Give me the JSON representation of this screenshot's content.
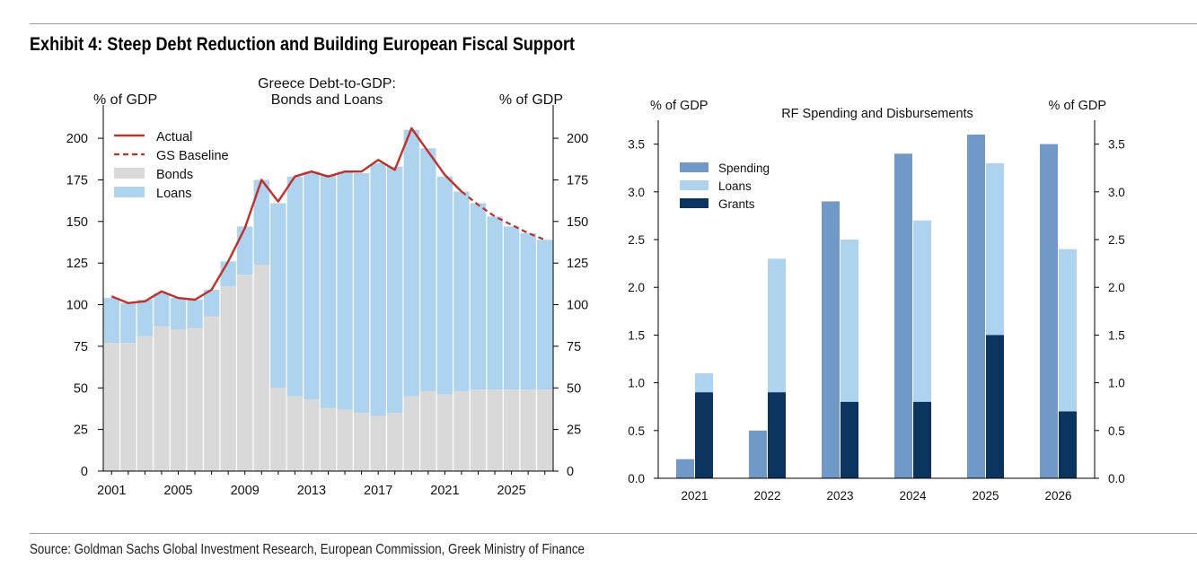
{
  "exhibit": {
    "title": "Exhibit 4: Steep Debt Reduction and Building European Fiscal Support",
    "source": "Source: Goldman Sachs Global Investment Research, European Commission, Greek Ministry of Finance"
  },
  "colors": {
    "bonds": "#d9d9d9",
    "loans": "#aed3ee",
    "actual": "#c0302b",
    "baseline": "#c0302b",
    "spending": "#7199c8",
    "rf_loans": "#aed3ee",
    "grants": "#0b355f"
  },
  "chart_data": [
    {
      "type": "bar",
      "stacked": true,
      "title_lines": [
        "Greece Debt-to-GDP:",
        "Bonds and Loans"
      ],
      "ylabel_left": "% of GDP",
      "ylabel_right": "% of GDP",
      "ylim": [
        0,
        220
      ],
      "yticks": [
        0,
        25,
        50,
        75,
        100,
        125,
        150,
        175,
        200
      ],
      "x": [
        2001,
        2002,
        2003,
        2004,
        2005,
        2006,
        2007,
        2008,
        2009,
        2010,
        2011,
        2012,
        2013,
        2014,
        2015,
        2016,
        2017,
        2018,
        2019,
        2020,
        2021,
        2022,
        2023,
        2024,
        2025,
        2026,
        2027
      ],
      "xtick_labels": [
        "2001",
        "2005",
        "2009",
        "2013",
        "2017",
        "2021",
        "2025"
      ],
      "legend_position": "top-left",
      "series": [
        {
          "name": "Bonds",
          "kind": "bar",
          "values": [
            77,
            77,
            81,
            87,
            85,
            86,
            93,
            111,
            118,
            124,
            50,
            45,
            43,
            38,
            37,
            35,
            33,
            35,
            45,
            48,
            46,
            48,
            49,
            49,
            49,
            49,
            49
          ]
        },
        {
          "name": "Loans",
          "kind": "bar",
          "values": [
            27,
            24,
            22,
            20,
            19,
            17,
            16,
            15,
            29,
            51,
            111,
            132,
            137,
            140,
            143,
            144,
            152,
            148,
            160,
            146,
            131,
            120,
            112,
            104,
            98,
            94,
            90
          ]
        },
        {
          "name": "Actual",
          "kind": "line",
          "values": [
            105,
            101,
            102,
            108,
            104,
            103,
            109,
            126,
            146,
            175,
            162,
            177,
            180,
            177,
            180,
            180,
            187,
            181,
            206,
            192,
            178,
            168,
            null,
            null,
            null,
            null,
            null
          ]
        },
        {
          "name": "GS Baseline",
          "kind": "dashed-line",
          "values": [
            null,
            null,
            null,
            null,
            null,
            null,
            null,
            null,
            null,
            null,
            null,
            null,
            null,
            null,
            null,
            null,
            null,
            null,
            null,
            null,
            null,
            168,
            160,
            153,
            148,
            143,
            139
          ]
        }
      ]
    },
    {
      "type": "bar",
      "title": "RF Spending and Disbursements",
      "ylabel_left": "% of GDP",
      "ylabel_right": "% of GDP",
      "ylim": [
        0,
        3.75
      ],
      "yticks": [
        "0.0",
        "0.5",
        "1.0",
        "1.5",
        "2.0",
        "2.5",
        "3.0",
        "3.5"
      ],
      "categories": [
        "2021",
        "2022",
        "2023",
        "2024",
        "2025",
        "2026"
      ],
      "legend_position": "top-left",
      "series": [
        {
          "name": "Spending",
          "values": [
            0.2,
            0.5,
            2.9,
            3.4,
            3.6,
            3.5
          ]
        },
        {
          "name": "Loans",
          "values": [
            1.1,
            2.3,
            2.5,
            2.7,
            3.3,
            2.4
          ]
        },
        {
          "name": "Grants",
          "values": [
            0.9,
            0.9,
            0.8,
            0.8,
            1.5,
            0.7
          ]
        }
      ]
    }
  ]
}
